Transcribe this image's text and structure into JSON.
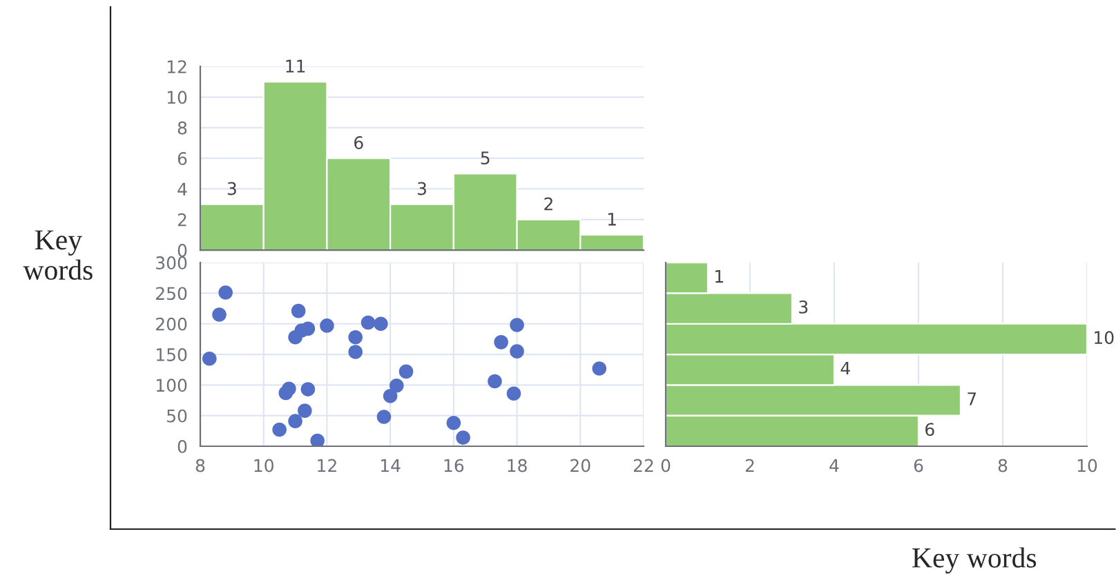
{
  "chart_data": [
    {
      "type": "histogram",
      "bins": [
        8,
        10,
        12,
        14,
        16,
        18,
        20,
        22
      ],
      "values": [
        3,
        11,
        6,
        3,
        5,
        2,
        1
      ],
      "color": "#91cc75",
      "xlim": [
        8,
        22
      ],
      "ylim": [
        0,
        12
      ],
      "yticks": [
        0,
        2,
        4,
        6,
        8,
        10,
        12
      ],
      "tick_labels": "y",
      "data_labels": true,
      "grid": "y"
    },
    {
      "type": "scatter",
      "color": "#5470c6",
      "x": [
        8.29,
        8.8,
        8.6,
        11.1,
        11.0,
        11.2,
        11.4,
        12.0,
        12.9,
        12.9,
        13.3,
        13.7,
        10.7,
        10.8,
        11.4,
        11.3,
        11.0,
        10.5,
        11.7,
        13.8,
        14.0,
        14.2,
        14.5,
        16.0,
        16.3,
        17.3,
        17.5,
        18.0,
        18.0,
        17.9,
        20.6
      ],
      "values": [
        143,
        251,
        215,
        221,
        178,
        189,
        192,
        197,
        178,
        154,
        202,
        200,
        87,
        94,
        93,
        58,
        41,
        27,
        9,
        48,
        82,
        99,
        122,
        38,
        14,
        106,
        170,
        198,
        155,
        86,
        127
      ],
      "xlim": [
        8,
        22
      ],
      "xticks": [
        8,
        10,
        12,
        14,
        16,
        18,
        20,
        22
      ],
      "ylim": [
        0,
        300
      ],
      "yticks": [
        0,
        50,
        100,
        150,
        200,
        250,
        300
      ],
      "grid": true,
      "marker": "circle"
    },
    {
      "type": "histogram",
      "orientation": "horizontal",
      "bins": [
        0,
        50,
        100,
        150,
        200,
        250,
        300
      ],
      "values": [
        6,
        7,
        4,
        10,
        3,
        1
      ],
      "color": "#91cc75",
      "xlim": [
        0,
        10
      ],
      "xticks": [
        0,
        2,
        4,
        6,
        8,
        10
      ],
      "ylim": [
        0,
        300
      ],
      "tick_labels": "x",
      "data_labels": true,
      "grid": "x"
    },
    {
      "type": "other",
      "xlabel": "Key words",
      "ylabel": "Key words"
    }
  ]
}
